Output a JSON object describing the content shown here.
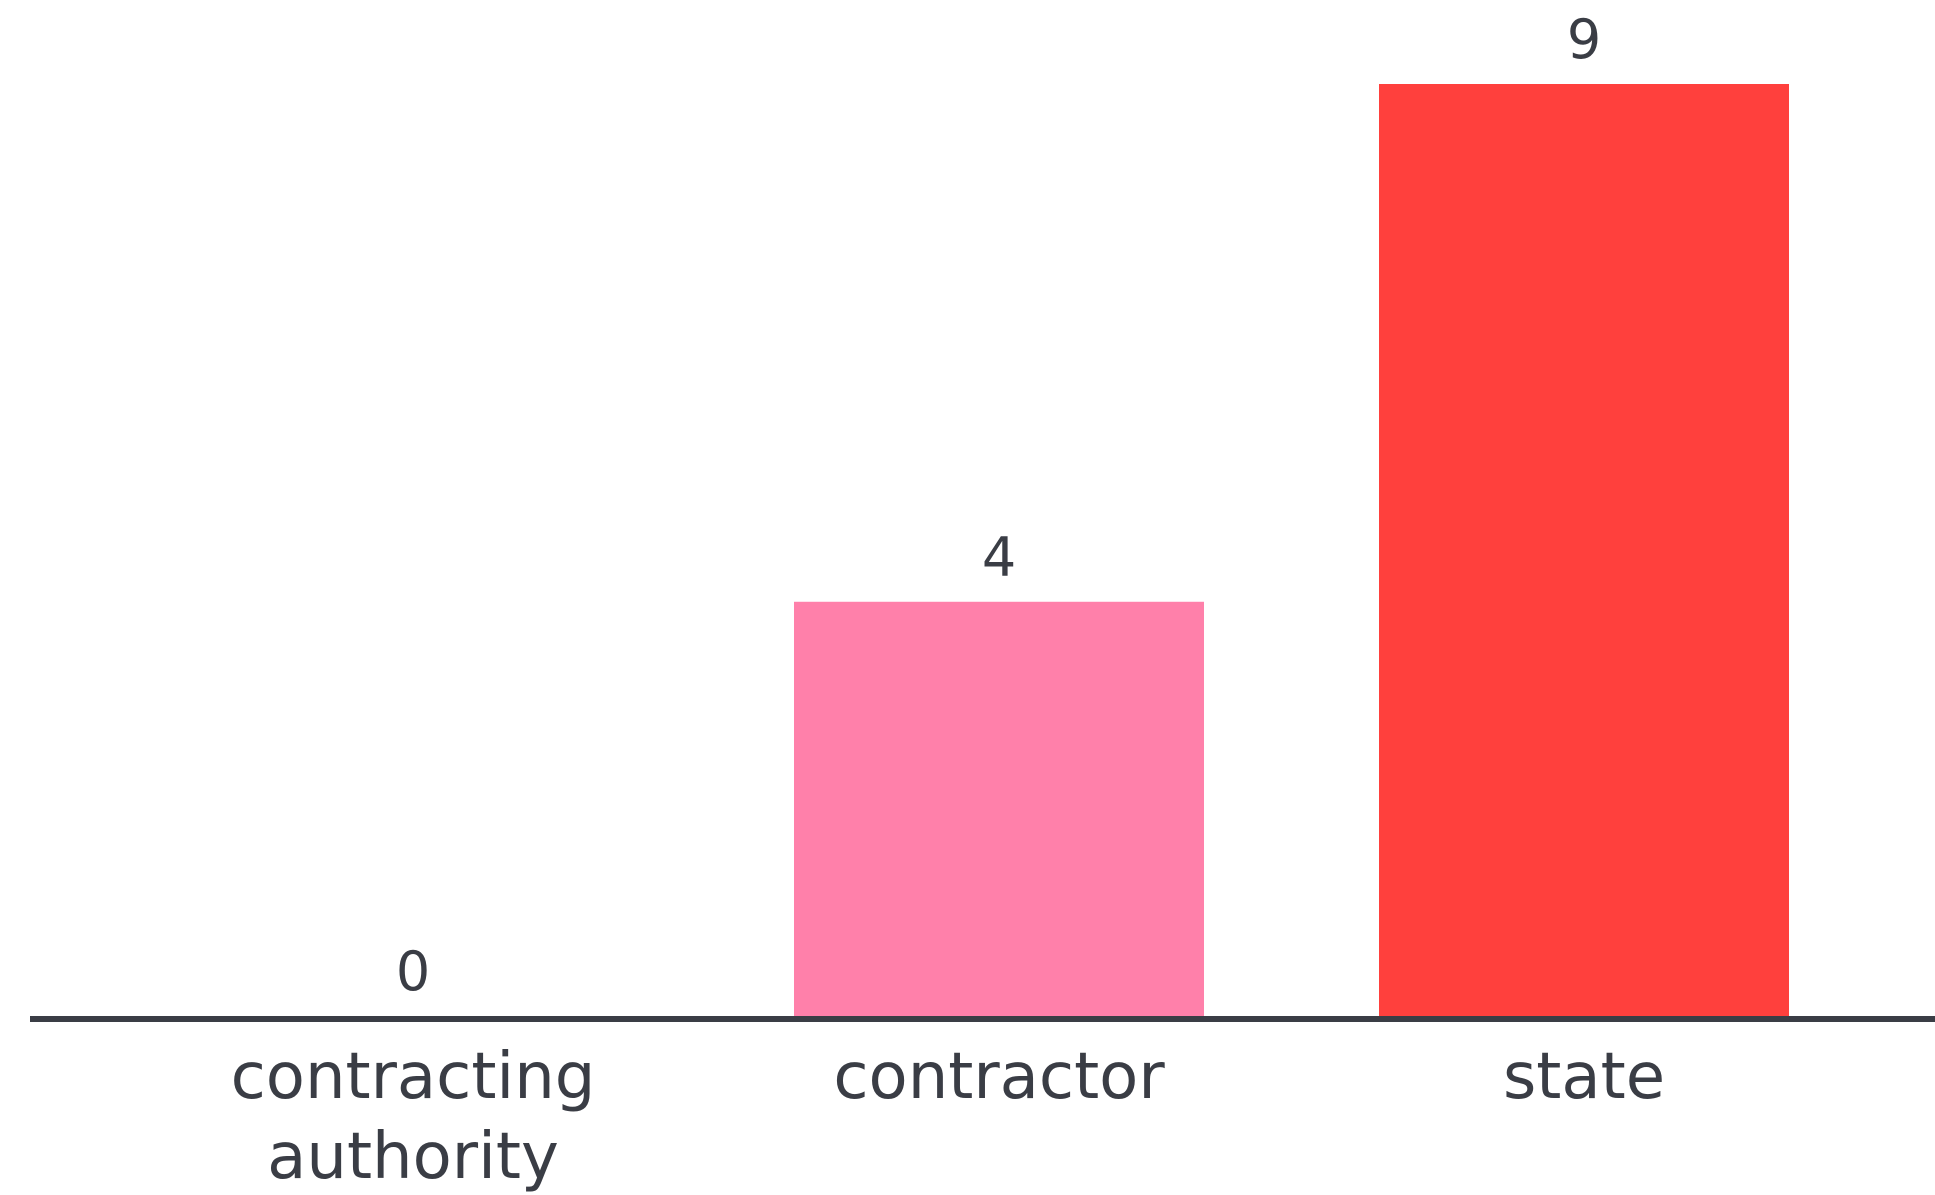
{
  "chart_data": {
    "type": "bar",
    "title": "",
    "xlabel": "",
    "ylabel": "",
    "categories": [
      [
        "contracting",
        "authority"
      ],
      [
        "contractor"
      ],
      [
        "state"
      ]
    ],
    "values": [
      0,
      4,
      9
    ],
    "value_labels": [
      "0",
      "4",
      "9"
    ],
    "ylim": [
      0,
      9
    ],
    "grid": false,
    "legend": "none",
    "colors": [
      "#ff80aa",
      "#ff80aa",
      "#ff403d"
    ],
    "axis_color": "#3a3d45",
    "text_color": "#3a3d45"
  }
}
